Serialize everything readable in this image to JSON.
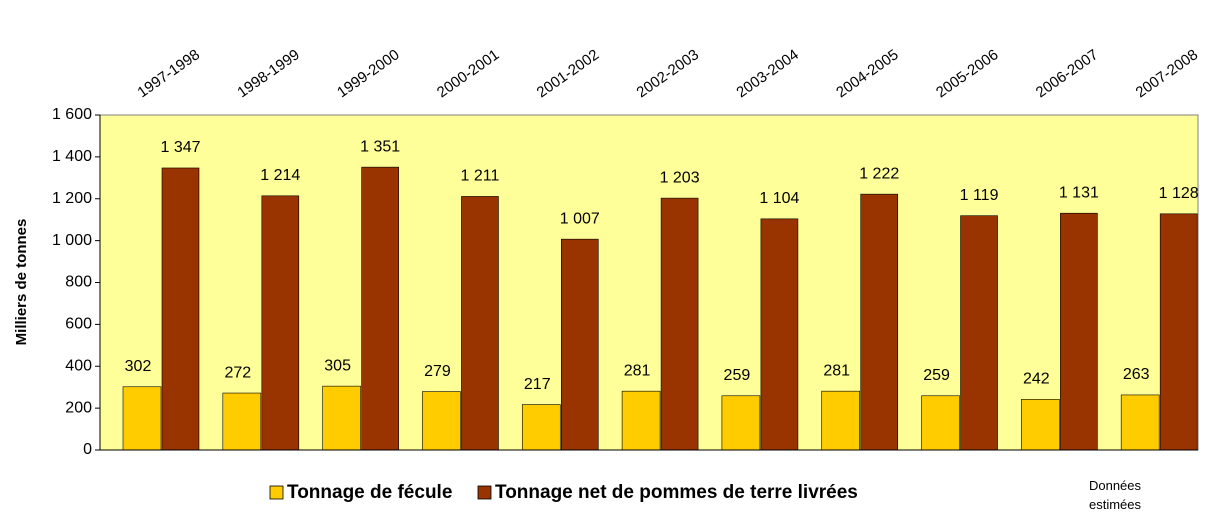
{
  "chart_data": {
    "type": "bar",
    "y_label": "Milliers de tonnes",
    "categories": [
      "1997-1998",
      "1998-1999",
      "1999-2000",
      "2000-2001",
      "2001-2002",
      "2002-2003",
      "2003-2004",
      "2004-2005",
      "2005-2006",
      "2006-2007",
      "2007-2008"
    ],
    "series": [
      {
        "name": "Tonnage de fécule",
        "color": "#ffcc00",
        "values": [
          302,
          272,
          305,
          279,
          217,
          281,
          259,
          281,
          259,
          242,
          263
        ]
      },
      {
        "name": "Tonnage net de pommes de terre livrées",
        "color": "#993300",
        "values": [
          1347,
          1214,
          1351,
          1211,
          1007,
          1203,
          1104,
          1222,
          1119,
          1131,
          1128
        ],
        "value_labels": [
          "1 347",
          "1 214",
          "1 351",
          "1 211",
          "1 007",
          "1 203",
          "1 104",
          "1 222",
          "1 119",
          "1 131",
          "1 128"
        ]
      }
    ],
    "ylim": [
      0,
      1600
    ],
    "yticks": [
      0,
      200,
      400,
      600,
      800,
      {
        "value": 1000,
        "label": "1 000"
      },
      {
        "value": 1200,
        "label": "1 200"
      },
      {
        "value": 1400,
        "label": "1 400"
      },
      {
        "value": 1600,
        "label": "1 600"
      }
    ],
    "plot_background": "#ffff99",
    "annotation": "Données estimées"
  }
}
